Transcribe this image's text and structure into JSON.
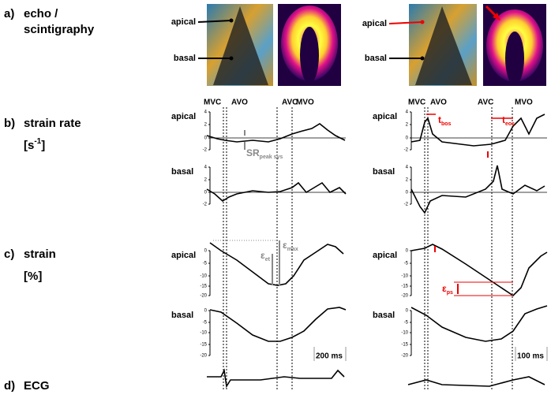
{
  "rows": [
    {
      "letter": "a)",
      "title": "echo /",
      "title2": "scintigraphy"
    },
    {
      "letter": "b)",
      "title": "strain rate",
      "unit": "[s",
      "unit_exp": "-1",
      "unit_close": "]"
    },
    {
      "letter": "c)",
      "title": "strain",
      "unit": "[%]"
    },
    {
      "letter": "d)",
      "title": "ECG"
    }
  ],
  "columns": [
    {
      "echo_labels": [
        "apical",
        "basal"
      ],
      "events": [
        "MVC",
        "AVO",
        "AVC",
        "MVO"
      ],
      "strain_rate": [
        {
          "label": "apical",
          "ticks": [
            "4",
            "2",
            "0",
            "-2"
          ]
        },
        {
          "label": "basal",
          "ticks": [
            "4",
            "2",
            "0",
            "-2"
          ]
        }
      ],
      "strain": [
        {
          "label": "apical",
          "ticks": [
            "0",
            "-5",
            "-10",
            "-15",
            "-20"
          ]
        },
        {
          "label": "basal",
          "ticks": [
            "0",
            "-5",
            "-10",
            "-15",
            "-20"
          ]
        }
      ],
      "annotations": [
        {
          "text": "SR",
          "sub": "peak sys"
        },
        {
          "text": "ε",
          "sub": "et"
        },
        {
          "text": "ε",
          "sub": "max"
        }
      ],
      "scale": "200 ms"
    },
    {
      "echo_labels": [
        "apical",
        "basal"
      ],
      "events": [
        "MVC",
        "AVO",
        "AVC",
        "MVO"
      ],
      "strain_rate": [
        {
          "label": "apical",
          "ticks": [
            "4",
            "2",
            "0",
            "-2"
          ]
        },
        {
          "label": "basal",
          "ticks": [
            "4",
            "2",
            "0",
            "-2"
          ]
        }
      ],
      "strain": [
        {
          "label": "apical",
          "ticks": [
            "0",
            "-5",
            "-10",
            "-15",
            "-20"
          ]
        },
        {
          "label": "basal",
          "ticks": [
            "0",
            "-5",
            "-10",
            "-15",
            "-20"
          ]
        }
      ],
      "annotations": [
        {
          "text": "t",
          "sub": "bos"
        },
        {
          "text": "t",
          "sub": "eos"
        },
        {
          "text": "ε",
          "sub": "ps"
        }
      ],
      "scale": "100 ms"
    }
  ]
}
